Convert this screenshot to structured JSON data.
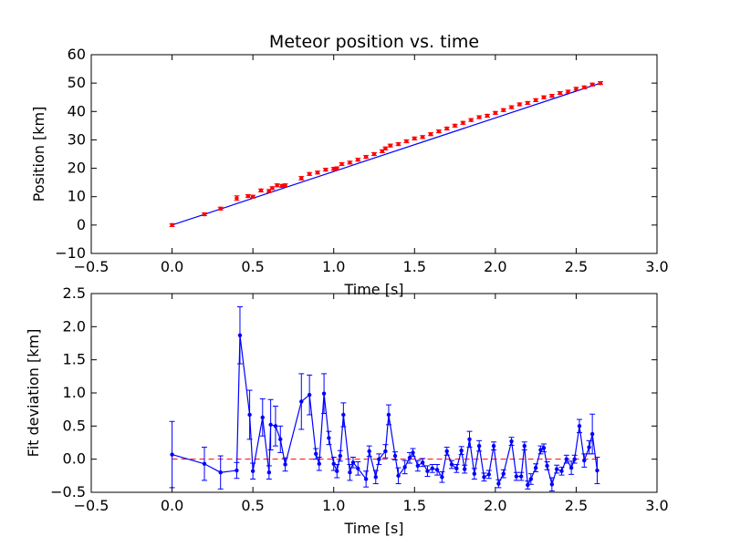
{
  "chart_data": [
    {
      "type": "line",
      "title": "Meteor position vs. time",
      "xlabel": "Time [s]",
      "ylabel": "Position [km]",
      "xlim": [
        -0.5,
        3.0
      ],
      "ylim": [
        -10,
        60
      ],
      "xticks": [
        "−0.5",
        "0.0",
        "0.5",
        "1.0",
        "1.5",
        "2.0",
        "2.5",
        "3.0"
      ],
      "yticks": [
        "−10",
        "0",
        "10",
        "20",
        "30",
        "40",
        "50",
        "60"
      ],
      "xtick_values": [
        -0.5,
        0.0,
        0.5,
        1.0,
        1.5,
        2.0,
        2.5,
        3.0
      ],
      "ytick_values": [
        -10,
        0,
        10,
        20,
        30,
        40,
        50,
        60
      ],
      "grid": false,
      "series": [
        {
          "kind": "fit_line",
          "color": "#0000ff",
          "x": [
            0.0,
            2.65
          ],
          "y": [
            0.0,
            50.0
          ]
        },
        {
          "kind": "points_with_error",
          "color": "#ff0000",
          "x": [
            0.0,
            0.2,
            0.3,
            0.4,
            0.47,
            0.5,
            0.55,
            0.6,
            0.62,
            0.65,
            0.68,
            0.7,
            0.8,
            0.85,
            0.9,
            0.95,
            1.0,
            1.02,
            1.05,
            1.1,
            1.15,
            1.2,
            1.25,
            1.3,
            1.32,
            1.35,
            1.4,
            1.45,
            1.5,
            1.55,
            1.6,
            1.65,
            1.7,
            1.75,
            1.8,
            1.85,
            1.9,
            1.95,
            2.0,
            2.05,
            2.1,
            2.15,
            2.2,
            2.25,
            2.3,
            2.35,
            2.4,
            2.45,
            2.5,
            2.55,
            2.6,
            2.65
          ],
          "y": [
            0.0,
            3.8,
            5.8,
            9.5,
            10.2,
            10.0,
            12.2,
            12.0,
            13.0,
            14.0,
            13.8,
            14.0,
            16.5,
            18.0,
            18.5,
            19.5,
            19.8,
            20.0,
            21.5,
            22.0,
            23.0,
            24.0,
            25.0,
            26.0,
            27.0,
            28.0,
            28.5,
            29.5,
            30.5,
            31.0,
            32.0,
            33.0,
            34.0,
            35.0,
            36.0,
            37.0,
            38.0,
            38.5,
            39.5,
            40.5,
            41.5,
            42.5,
            43.0,
            44.0,
            45.0,
            45.5,
            46.5,
            47.0,
            48.0,
            48.5,
            49.5,
            50.0
          ],
          "yerr": [
            0.5,
            0.5,
            0.5,
            0.8,
            0.5,
            0.5,
            0.5,
            0.5,
            0.5,
            0.5,
            0.5,
            0.5,
            0.6,
            0.5,
            0.5,
            0.5,
            0.5,
            0.5,
            0.5,
            0.5,
            0.5,
            0.5,
            0.5,
            0.5,
            0.5,
            0.5,
            0.5,
            0.5,
            0.5,
            0.5,
            0.5,
            0.5,
            0.5,
            0.5,
            0.5,
            0.5,
            0.5,
            0.5,
            0.5,
            0.5,
            0.5,
            0.5,
            0.5,
            0.5,
            0.5,
            0.5,
            0.5,
            0.5,
            0.5,
            0.5,
            0.5,
            0.5
          ]
        }
      ]
    },
    {
      "type": "line",
      "title": "",
      "xlabel": "Time [s]",
      "ylabel": "Fit deviation [km]",
      "xlim": [
        -0.5,
        3.0
      ],
      "ylim": [
        -0.5,
        2.5
      ],
      "xticks": [
        "−0.5",
        "0.0",
        "0.5",
        "1.0",
        "1.5",
        "2.0",
        "2.5",
        "3.0"
      ],
      "yticks": [
        "−0.5",
        "0.0",
        "0.5",
        "1.0",
        "1.5",
        "2.0",
        "2.5"
      ],
      "xtick_values": [
        -0.5,
        0.0,
        0.5,
        1.0,
        1.5,
        2.0,
        2.5,
        3.0
      ],
      "ytick_values": [
        -0.5,
        0.0,
        0.5,
        1.0,
        1.5,
        2.0,
        2.5
      ],
      "grid": false,
      "zero_line": {
        "color": "#ff0000",
        "style": "dashed",
        "x": [
          0.0,
          2.65
        ],
        "y": [
          0.0,
          0.0
        ]
      },
      "series": [
        {
          "kind": "line_with_error",
          "color": "#0000ff",
          "x": [
            0.0,
            0.2,
            0.3,
            0.4,
            0.42,
            0.48,
            0.5,
            0.56,
            0.6,
            0.61,
            0.64,
            0.67,
            0.7,
            0.8,
            0.85,
            0.89,
            0.91,
            0.94,
            0.97,
            1.0,
            1.02,
            1.04,
            1.06,
            1.1,
            1.12,
            1.15,
            1.2,
            1.22,
            1.26,
            1.28,
            1.32,
            1.34,
            1.38,
            1.4,
            1.44,
            1.47,
            1.49,
            1.52,
            1.55,
            1.58,
            1.61,
            1.64,
            1.67,
            1.7,
            1.73,
            1.76,
            1.79,
            1.81,
            1.84,
            1.87,
            1.9,
            1.93,
            1.96,
            1.99,
            2.02,
            2.05,
            2.1,
            2.13,
            2.16,
            2.18,
            2.2,
            2.22,
            2.25,
            2.28,
            2.3,
            2.32,
            2.35,
            2.38,
            2.41,
            2.44,
            2.47,
            2.49,
            2.52,
            2.55,
            2.58,
            2.6,
            2.63
          ],
          "y": [
            0.07,
            -0.07,
            -0.2,
            -0.17,
            1.87,
            0.67,
            -0.18,
            0.63,
            -0.2,
            0.52,
            0.5,
            0.3,
            -0.08,
            0.87,
            0.97,
            0.08,
            -0.07,
            0.99,
            0.32,
            -0.07,
            -0.18,
            0.05,
            0.67,
            -0.2,
            -0.05,
            -0.14,
            -0.3,
            0.12,
            -0.27,
            0.0,
            0.12,
            0.67,
            0.05,
            -0.25,
            -0.12,
            0.02,
            0.1,
            -0.1,
            -0.05,
            -0.18,
            -0.14,
            -0.16,
            -0.27,
            0.12,
            -0.08,
            -0.14,
            0.13,
            -0.15,
            0.3,
            -0.22,
            0.2,
            -0.27,
            -0.23,
            0.2,
            -0.37,
            -0.22,
            0.27,
            -0.26,
            -0.26,
            0.2,
            -0.39,
            -0.3,
            -0.13,
            0.14,
            0.17,
            -0.1,
            -0.38,
            -0.15,
            -0.18,
            0.0,
            -0.13,
            0.0,
            0.5,
            -0.02,
            0.18,
            0.38,
            -0.17
          ],
          "yerr": [
            0.5,
            0.25,
            0.25,
            0.12,
            0.43,
            0.37,
            0.12,
            0.28,
            0.1,
            0.38,
            0.3,
            0.2,
            0.1,
            0.42,
            0.3,
            0.08,
            0.1,
            0.3,
            0.1,
            0.1,
            0.1,
            0.08,
            0.18,
            0.12,
            0.08,
            0.1,
            0.12,
            0.08,
            0.1,
            0.08,
            0.1,
            0.15,
            0.06,
            0.12,
            0.1,
            0.08,
            0.06,
            0.08,
            0.06,
            0.08,
            0.06,
            0.08,
            0.08,
            0.06,
            0.06,
            0.06,
            0.06,
            0.06,
            0.12,
            0.08,
            0.08,
            0.06,
            0.06,
            0.06,
            0.06,
            0.06,
            0.06,
            0.06,
            0.06,
            0.06,
            0.06,
            0.08,
            0.06,
            0.06,
            0.06,
            0.06,
            0.1,
            0.06,
            0.06,
            0.06,
            0.1,
            0.06,
            0.1,
            0.1,
            0.1,
            0.3,
            0.2
          ]
        }
      ]
    }
  ]
}
